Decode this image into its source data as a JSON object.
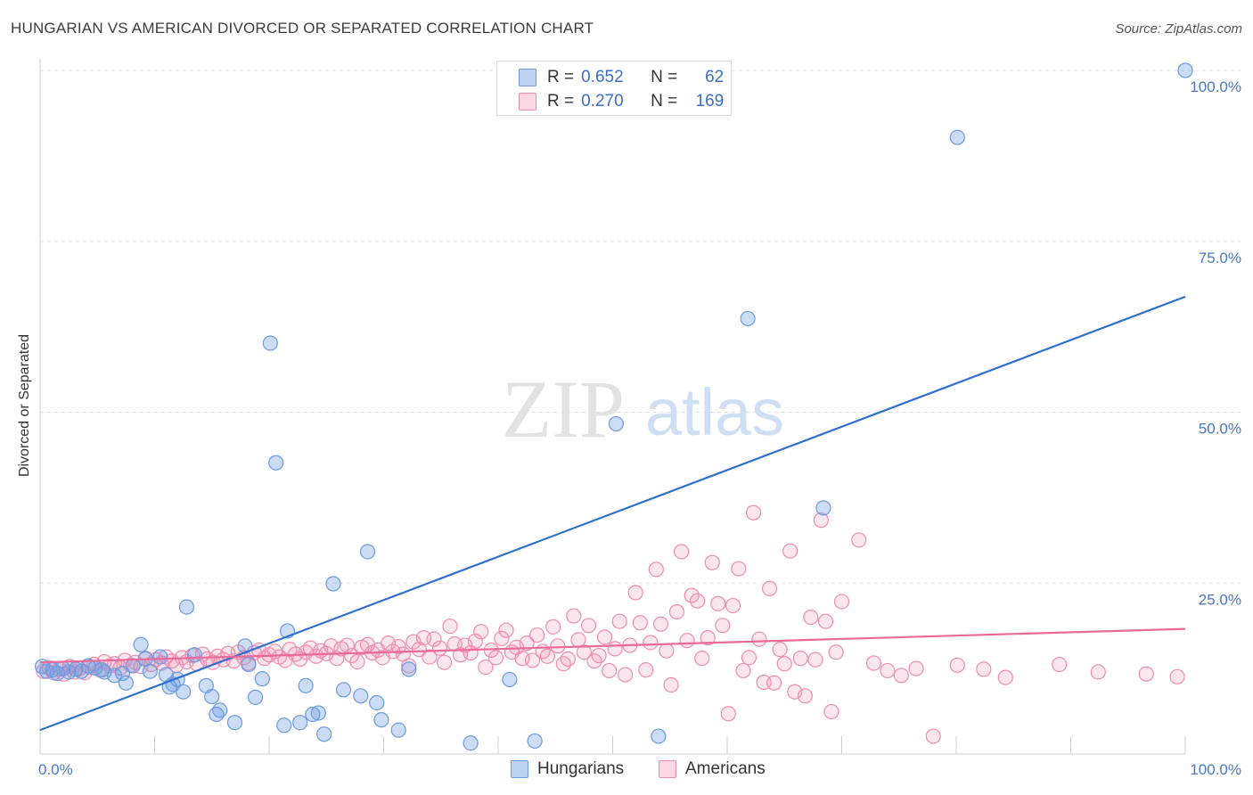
{
  "title": "HUNGARIAN VS AMERICAN DIVORCED OR SEPARATED CORRELATION CHART",
  "source": "Source: ZipAtlas.com",
  "watermark": {
    "zip": "ZIP",
    "atlas": "atlas"
  },
  "legend_top": [
    {
      "r_label": "R =",
      "r_value": "0.652",
      "n_label": "N =",
      "n_value": "62",
      "color": "#6b9be0"
    },
    {
      "r_label": "R =",
      "r_value": "0.270",
      "n_label": "N =",
      "n_value": "169",
      "color": "#f08cb0"
    }
  ],
  "legend_bottom": [
    {
      "label": "Hungarians",
      "color": "#6b9be0"
    },
    {
      "label": "Americans",
      "color": "#f08cb0"
    }
  ],
  "chart_data": {
    "type": "scatter",
    "ylabel": "Divorced or Separated",
    "x_tick_labels": [
      "0.0%",
      "100.0%"
    ],
    "y_tick_labels": [
      "100.0%",
      "75.0%",
      "50.0%",
      "25.0%"
    ],
    "xlim": [
      0,
      100
    ],
    "ylim": [
      0,
      100
    ],
    "grid": true,
    "series": [
      {
        "name": "Hungarians",
        "color": "#6b9be0",
        "trend": {
          "x": [
            0,
            100
          ],
          "y": [
            3.5,
            66.9
          ]
        },
        "points": [
          [
            0.2,
            12.8
          ],
          [
            0.6,
            12.1
          ],
          [
            1.1,
            12.3
          ],
          [
            1.5,
            11.8
          ],
          [
            2.0,
            12.5
          ],
          [
            2.5,
            12.0
          ],
          [
            3.1,
            12.4
          ],
          [
            3.6,
            12.1
          ],
          [
            4.2,
            12.9
          ],
          [
            4.8,
            12.6
          ],
          [
            5.4,
            12.3
          ],
          [
            5.6,
            12.0
          ],
          [
            6.5,
            11.5
          ],
          [
            7.2,
            11.8
          ],
          [
            7.5,
            10.4
          ],
          [
            8.1,
            12.9
          ],
          [
            8.8,
            16.0
          ],
          [
            9.2,
            13.9
          ],
          [
            9.6,
            12.1
          ],
          [
            10.5,
            14.2
          ],
          [
            11.0,
            11.6
          ],
          [
            11.3,
            9.8
          ],
          [
            11.6,
            10.2
          ],
          [
            12.0,
            10.9
          ],
          [
            12.5,
            9.1
          ],
          [
            12.8,
            21.5
          ],
          [
            13.5,
            14.5
          ],
          [
            14.5,
            10.0
          ],
          [
            15.0,
            8.4
          ],
          [
            15.4,
            5.8
          ],
          [
            15.7,
            6.4
          ],
          [
            17.0,
            4.6
          ],
          [
            17.9,
            15.8
          ],
          [
            18.2,
            13.1
          ],
          [
            18.8,
            8.3
          ],
          [
            19.4,
            11.0
          ],
          [
            20.1,
            60.1
          ],
          [
            20.6,
            42.6
          ],
          [
            21.3,
            4.2
          ],
          [
            21.6,
            18.0
          ],
          [
            22.7,
            4.6
          ],
          [
            23.2,
            10.0
          ],
          [
            23.8,
            5.8
          ],
          [
            24.3,
            6.0
          ],
          [
            24.8,
            2.9
          ],
          [
            25.6,
            24.9
          ],
          [
            26.5,
            9.4
          ],
          [
            28.0,
            8.5
          ],
          [
            28.6,
            29.6
          ],
          [
            29.4,
            7.5
          ],
          [
            29.8,
            5.0
          ],
          [
            31.3,
            3.5
          ],
          [
            32.2,
            12.4
          ],
          [
            37.6,
            1.6
          ],
          [
            41.0,
            10.9
          ],
          [
            43.2,
            1.9
          ],
          [
            50.3,
            48.3
          ],
          [
            54.0,
            2.6
          ],
          [
            61.8,
            63.7
          ],
          [
            68.4,
            36.0
          ],
          [
            80.1,
            90.2
          ],
          [
            100.0,
            100.0
          ]
        ]
      },
      {
        "name": "Americans",
        "color": "#f08cb0",
        "trend": {
          "x": [
            0,
            100
          ],
          "y": [
            13.4,
            18.3
          ]
        },
        "points": [
          [
            0.3,
            12.1
          ],
          [
            0.8,
            12.6
          ],
          [
            1.2,
            11.9
          ],
          [
            1.7,
            12.4
          ],
          [
            2.1,
            11.7
          ],
          [
            2.6,
            12.8
          ],
          [
            3.0,
            12.0
          ],
          [
            3.4,
            12.5
          ],
          [
            3.9,
            11.9
          ],
          [
            4.3,
            12.7
          ],
          [
            4.7,
            13.1
          ],
          [
            5.2,
            12.3
          ],
          [
            5.6,
            13.5
          ],
          [
            6.1,
            12.9
          ],
          [
            6.5,
            13.2
          ],
          [
            7.0,
            12.6
          ],
          [
            7.4,
            13.7
          ],
          [
            7.9,
            13.0
          ],
          [
            8.3,
            13.4
          ],
          [
            8.8,
            12.8
          ],
          [
            9.2,
            14.0
          ],
          [
            9.7,
            13.1
          ],
          [
            10.1,
            13.8
          ],
          [
            10.6,
            13.3
          ],
          [
            11.0,
            14.2
          ],
          [
            11.5,
            13.6
          ],
          [
            11.9,
            13.0
          ],
          [
            12.4,
            14.1
          ],
          [
            12.8,
            13.5
          ],
          [
            13.3,
            14.4
          ],
          [
            13.7,
            13.2
          ],
          [
            14.2,
            14.6
          ],
          [
            14.6,
            13.9
          ],
          [
            15.1,
            13.4
          ],
          [
            15.5,
            14.3
          ],
          [
            16.0,
            13.8
          ],
          [
            16.4,
            14.7
          ],
          [
            16.9,
            13.6
          ],
          [
            17.3,
            14.9
          ],
          [
            17.8,
            14.1
          ],
          [
            18.2,
            13.3
          ],
          [
            18.7,
            14.8
          ],
          [
            19.1,
            15.2
          ],
          [
            19.6,
            14.0
          ],
          [
            20.0,
            14.5
          ],
          [
            20.5,
            15.0
          ],
          [
            20.9,
            14.2
          ],
          [
            21.4,
            13.7
          ],
          [
            21.8,
            15.3
          ],
          [
            22.3,
            14.6
          ],
          [
            22.7,
            13.9
          ],
          [
            23.2,
            14.9
          ],
          [
            23.6,
            15.5
          ],
          [
            24.1,
            14.3
          ],
          [
            24.5,
            15.1
          ],
          [
            25.0,
            14.7
          ],
          [
            25.4,
            15.8
          ],
          [
            25.9,
            14.0
          ],
          [
            26.3,
            15.4
          ],
          [
            26.8,
            15.9
          ],
          [
            27.2,
            14.4
          ],
          [
            27.7,
            13.5
          ],
          [
            28.1,
            15.6
          ],
          [
            28.6,
            16.0
          ],
          [
            29.0,
            14.8
          ],
          [
            29.5,
            15.2
          ],
          [
            29.9,
            14.1
          ],
          [
            30.4,
            16.2
          ],
          [
            30.8,
            15.0
          ],
          [
            31.3,
            15.7
          ],
          [
            31.7,
            14.6
          ],
          [
            32.2,
            12.9
          ],
          [
            32.6,
            16.4
          ],
          [
            33.1,
            15.3
          ],
          [
            33.5,
            17.0
          ],
          [
            34.0,
            14.2
          ],
          [
            34.4,
            16.8
          ],
          [
            34.9,
            15.5
          ],
          [
            35.3,
            13.4
          ],
          [
            35.8,
            18.7
          ],
          [
            36.2,
            16.1
          ],
          [
            36.7,
            14.5
          ],
          [
            37.1,
            15.9
          ],
          [
            37.6,
            14.8
          ],
          [
            38.0,
            16.5
          ],
          [
            38.5,
            17.9
          ],
          [
            38.9,
            12.7
          ],
          [
            39.4,
            15.2
          ],
          [
            39.8,
            14.1
          ],
          [
            40.3,
            16.9
          ],
          [
            40.7,
            18.1
          ],
          [
            41.2,
            14.9
          ],
          [
            41.6,
            15.6
          ],
          [
            42.1,
            14.0
          ],
          [
            42.5,
            16.2
          ],
          [
            43.0,
            13.7
          ],
          [
            43.4,
            17.4
          ],
          [
            43.9,
            15.0
          ],
          [
            44.3,
            14.3
          ],
          [
            44.8,
            18.6
          ],
          [
            45.2,
            15.8
          ],
          [
            45.7,
            13.2
          ],
          [
            46.1,
            13.9
          ],
          [
            46.6,
            20.2
          ],
          [
            47.0,
            16.7
          ],
          [
            47.5,
            14.9
          ],
          [
            47.9,
            18.8
          ],
          [
            48.4,
            13.6
          ],
          [
            48.8,
            14.4
          ],
          [
            49.3,
            17.1
          ],
          [
            49.7,
            12.2
          ],
          [
            50.2,
            15.4
          ],
          [
            50.6,
            19.4
          ],
          [
            51.1,
            11.6
          ],
          [
            51.5,
            15.9
          ],
          [
            52.0,
            23.6
          ],
          [
            52.4,
            19.2
          ],
          [
            52.9,
            12.3
          ],
          [
            53.3,
            16.3
          ],
          [
            53.8,
            27.0
          ],
          [
            54.2,
            19.0
          ],
          [
            54.7,
            15.1
          ],
          [
            55.1,
            10.1
          ],
          [
            55.6,
            20.8
          ],
          [
            56.0,
            29.6
          ],
          [
            56.5,
            16.6
          ],
          [
            56.9,
            23.2
          ],
          [
            57.4,
            22.4
          ],
          [
            57.8,
            14.0
          ],
          [
            58.3,
            17.0
          ],
          [
            58.7,
            28.0
          ],
          [
            59.2,
            22.0
          ],
          [
            59.6,
            18.8
          ],
          [
            60.1,
            5.9
          ],
          [
            60.5,
            21.7
          ],
          [
            61.0,
            27.1
          ],
          [
            61.4,
            12.2
          ],
          [
            61.9,
            14.1
          ],
          [
            62.3,
            35.3
          ],
          [
            62.8,
            16.8
          ],
          [
            63.2,
            10.5
          ],
          [
            63.7,
            24.2
          ],
          [
            64.1,
            10.4
          ],
          [
            64.6,
            15.3
          ],
          [
            65.0,
            13.2
          ],
          [
            65.5,
            29.7
          ],
          [
            65.9,
            9.1
          ],
          [
            66.4,
            14.0
          ],
          [
            66.8,
            8.5
          ],
          [
            67.3,
            20.0
          ],
          [
            67.7,
            13.8
          ],
          [
            68.2,
            34.2
          ],
          [
            68.6,
            19.4
          ],
          [
            69.1,
            6.2
          ],
          [
            69.5,
            14.9
          ],
          [
            70.0,
            22.3
          ],
          [
            71.5,
            31.3
          ],
          [
            72.8,
            13.3
          ],
          [
            74.0,
            12.2
          ],
          [
            75.2,
            11.5
          ],
          [
            76.5,
            12.5
          ],
          [
            78.0,
            2.6
          ],
          [
            80.1,
            13.0
          ],
          [
            82.4,
            12.4
          ],
          [
            84.3,
            11.2
          ],
          [
            89.0,
            13.1
          ],
          [
            92.4,
            12.0
          ],
          [
            96.6,
            11.7
          ],
          [
            99.3,
            11.3
          ]
        ]
      }
    ]
  }
}
